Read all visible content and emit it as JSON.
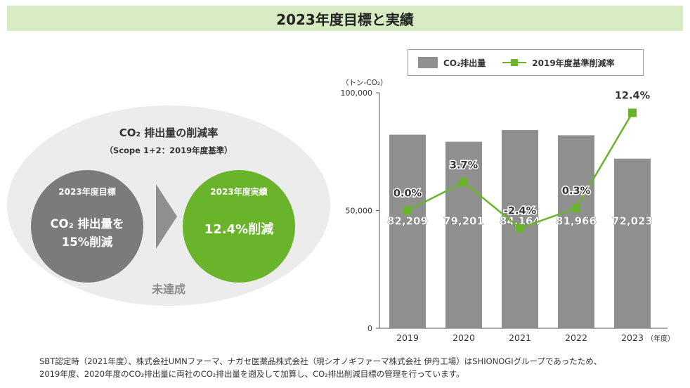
{
  "header": {
    "title": "2023年度目標と実績"
  },
  "summary": {
    "title": "CO₂ 排出量の削減率",
    "subtitle": "（Scope 1+2：2019年度基準）",
    "target": {
      "label": "2023年度目標",
      "line1": "CO₂ 排出量を",
      "line2": "15%削減"
    },
    "result": {
      "label": "2023年度実績",
      "value": "12.4%削減"
    },
    "status": "未達成",
    "colors": {
      "target": "#7b7b7b",
      "result": "#6ab42c",
      "arrow": "#8f8f8f"
    }
  },
  "legend": {
    "bar_label": "CO₂排出量",
    "line_label": "2019年度基準削減率"
  },
  "chart_data": {
    "type": "bar",
    "unit_label": "（トン-CO₂）",
    "categories": [
      "2019",
      "2020",
      "2021",
      "2022",
      "2023"
    ],
    "x_suffix": "（年度）",
    "ylim": [
      0,
      100000
    ],
    "yticks": [
      "0",
      "50,000",
      "100,000"
    ],
    "series": [
      {
        "name": "CO₂排出量",
        "type": "bar",
        "color": "#8f8f8f",
        "values": [
          82209,
          79201,
          84164,
          81966,
          72023
        ],
        "labels": [
          "82,209",
          "79,201",
          "84,164",
          "81,966",
          "72,023"
        ]
      },
      {
        "name": "2019年度基準削減率",
        "type": "line",
        "color": "#6ab42c",
        "values": [
          0.0,
          3.7,
          -2.4,
          0.3,
          12.4
        ],
        "labels": [
          "0.0%",
          "3.7%",
          "-2.4%",
          "0.3%",
          "12.4%"
        ],
        "plotted_as_tons": [
          50000,
          62000,
          42500,
          51000,
          91500
        ]
      }
    ]
  },
  "footnote": {
    "line1": "SBT認定時（2021年度）、株式会社UMNファーマ、ナガセ医薬品株式会社（現シオノギファーマ株式会社 伊丹工場）はSHIONOGIグループであったため、",
    "line2": "2019年度、2020年度のCO₂排出量に両社のCO₂排出量を遡及して加算し、CO₂排出削減目標の管理を行っています。"
  }
}
